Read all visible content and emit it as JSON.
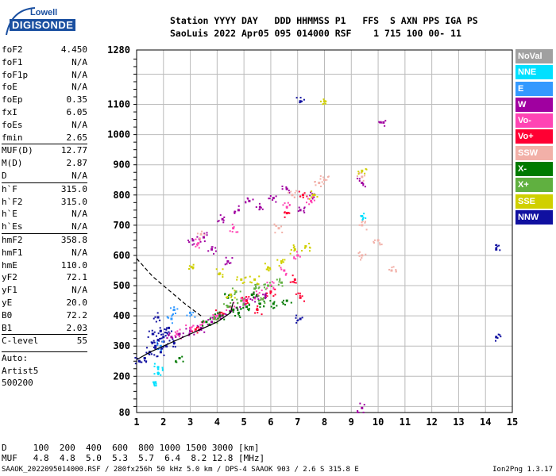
{
  "logo": {
    "top": "Lowell",
    "bottom": "DIGISONDE"
  },
  "header": {
    "line1": "Station YYYY DAY   DDD HHMMSS P1   FFS  S AXN PPS IGA PS",
    "line2": "SaoLuis 2022 Apr05 095 014000 RSF    1 715 100 00- 11"
  },
  "params": [
    {
      "label": "foF2",
      "value": "4.450"
    },
    {
      "label": "foF1",
      "value": "N/A"
    },
    {
      "label": "foF1p",
      "value": "N/A"
    },
    {
      "label": "foE",
      "value": "N/A"
    },
    {
      "label": "foEp",
      "value": "0.35"
    },
    {
      "label": "fxI",
      "value": "6.05"
    },
    {
      "label": "foEs",
      "value": "N/A"
    },
    {
      "label": "fmin",
      "value": "2.65"
    },
    {
      "label": "MUF(D)",
      "value": "12.77",
      "sep": true
    },
    {
      "label": "M(D)",
      "value": "2.87"
    },
    {
      "label": "D",
      "value": "N/A"
    },
    {
      "label": "h`F",
      "value": "315.0",
      "sep": true
    },
    {
      "label": "h`F2",
      "value": "315.0"
    },
    {
      "label": "h`E",
      "value": "N/A"
    },
    {
      "label": "h`Es",
      "value": "N/A"
    },
    {
      "label": "hmF2",
      "value": "358.8",
      "sep": true
    },
    {
      "label": "hmF1",
      "value": "N/A"
    },
    {
      "label": "hmE",
      "value": "110.0"
    },
    {
      "label": "yF2",
      "value": "72.1"
    },
    {
      "label": "yF1",
      "value": "N/A"
    },
    {
      "label": "yE",
      "value": "20.0"
    },
    {
      "label": "B0",
      "value": "72.2"
    },
    {
      "label": "B1",
      "value": "2.03"
    },
    {
      "label": "C-level",
      "value": "55",
      "sep": true
    }
  ],
  "autoscale": {
    "line1": "Auto:",
    "line2": "Artist5",
    "line3": "500200"
  },
  "legend": [
    {
      "label": "NoVal",
      "color": "#a0a0a0"
    },
    {
      "label": "NNE",
      "color": "#00e0ff"
    },
    {
      "label": "E",
      "color": "#3399ff"
    },
    {
      "label": "W",
      "color": "#a000a0"
    },
    {
      "label": "Vo-",
      "color": "#ff44b4"
    },
    {
      "label": "Vo+",
      "color": "#ff0033"
    },
    {
      "label": "SSW",
      "color": "#f2b0a8"
    },
    {
      "label": "X-",
      "color": "#007a00"
    },
    {
      "label": "X+",
      "color": "#60b040"
    },
    {
      "label": "SSE",
      "color": "#d0d000"
    },
    {
      "label": "NNW",
      "color": "#1010a0"
    }
  ],
  "table": {
    "row1": "D     100  200  400  600  800 1000 1500 3000 [km]",
    "row2": "MUF   4.8  4.8  5.0  5.3  5.7  6.4  8.2 12.8 [MHz]"
  },
  "footer": {
    "left": "SAAOK_2022095014000.RSF / 280fx256h 50 kHz 5.0 km / DPS-4 SAAOK 903 / 2.6 S 315.8 E",
    "right": "Ion2Png 1.3.17"
  },
  "chart_data": {
    "type": "scatter",
    "xlabel": "",
    "ylabel": "",
    "xlim": [
      1,
      15
    ],
    "ylim": [
      80,
      1280
    ],
    "x_ticks": [
      1,
      2,
      3,
      4,
      5,
      6,
      7,
      8,
      9,
      10,
      11,
      12,
      13,
      14,
      15
    ],
    "y_ticks": [
      80,
      200,
      300,
      400,
      500,
      600,
      700,
      800,
      900,
      1000,
      1100,
      1280
    ],
    "grid": true,
    "legend_position": "right",
    "series": [
      {
        "name": "NNW",
        "color": "#1010a0",
        "points": [
          [
            1.1,
            250
          ],
          [
            1.3,
            260
          ],
          [
            1.5,
            280
          ],
          [
            1.7,
            300
          ],
          [
            1.8,
            320
          ],
          [
            1.9,
            350
          ],
          [
            2.0,
            330
          ],
          [
            2.1,
            300
          ],
          [
            1.6,
            340
          ],
          [
            1.9,
            280
          ],
          [
            2.2,
            360
          ],
          [
            2.4,
            310
          ],
          [
            7.1,
            390
          ],
          [
            7.1,
            1110
          ],
          [
            14.4,
            620
          ],
          [
            14.4,
            330
          ],
          [
            1.8,
            395
          ]
        ]
      },
      {
        "name": "W",
        "color": "#a000a0",
        "points": [
          [
            2.3,
            330
          ],
          [
            2.6,
            340
          ],
          [
            3.0,
            350
          ],
          [
            3.4,
            360
          ],
          [
            3.8,
            380
          ],
          [
            4.2,
            400
          ],
          [
            4.6,
            420
          ],
          [
            5.0,
            440
          ],
          [
            5.4,
            460
          ],
          [
            5.8,
            470
          ],
          [
            3.1,
            650
          ],
          [
            3.5,
            660
          ],
          [
            4.2,
            720
          ],
          [
            4.8,
            750
          ],
          [
            5.2,
            780
          ],
          [
            5.6,
            760
          ],
          [
            6.1,
            790
          ],
          [
            6.6,
            820
          ],
          [
            7.1,
            750
          ],
          [
            7.6,
            800
          ],
          [
            9.4,
            840
          ],
          [
            9.4,
            95
          ],
          [
            10.2,
            1040
          ],
          [
            3.8,
            620
          ],
          [
            4.4,
            580
          ]
        ]
      },
      {
        "name": "Vo-",
        "color": "#ff44b4",
        "points": [
          [
            2.5,
            340
          ],
          [
            3.0,
            360
          ],
          [
            3.5,
            380
          ],
          [
            4.0,
            400
          ],
          [
            4.5,
            430
          ],
          [
            5.0,
            450
          ],
          [
            5.5,
            470
          ],
          [
            6.0,
            500
          ],
          [
            6.5,
            550
          ],
          [
            7.0,
            600
          ],
          [
            3.3,
            640
          ],
          [
            4.6,
            690
          ],
          [
            6.6,
            760
          ],
          [
            7.5,
            780
          ]
        ]
      },
      {
        "name": "Vo+",
        "color": "#ff0033",
        "points": [
          [
            3.2,
            355
          ],
          [
            4.1,
            410
          ],
          [
            5.1,
            450
          ],
          [
            6.0,
            480
          ],
          [
            6.6,
            740
          ],
          [
            6.9,
            520
          ],
          [
            7.1,
            460
          ],
          [
            7.2,
            800
          ],
          [
            5.5,
            420
          ]
        ]
      },
      {
        "name": "SSW",
        "color": "#f2b0a8",
        "points": [
          [
            7.8,
            840
          ],
          [
            8.0,
            850
          ],
          [
            9.4,
            600
          ],
          [
            9.4,
            700
          ],
          [
            9.4,
            860
          ],
          [
            10.0,
            650
          ],
          [
            10.5,
            550
          ],
          [
            6.3,
            690
          ],
          [
            6.8,
            800
          ],
          [
            3.4,
            670
          ]
        ]
      },
      {
        "name": "X-",
        "color": "#007a00",
        "points": [
          [
            3.6,
            380
          ],
          [
            4.1,
            400
          ],
          [
            4.6,
            420
          ],
          [
            5.1,
            430
          ],
          [
            5.6,
            440
          ],
          [
            6.1,
            440
          ],
          [
            6.6,
            450
          ],
          [
            4.4,
            460
          ],
          [
            5.3,
            470
          ],
          [
            2.6,
            260
          ],
          [
            4.8,
            410
          ]
        ]
      },
      {
        "name": "X+",
        "color": "#60b040",
        "points": [
          [
            3.9,
            390
          ],
          [
            4.4,
            430
          ],
          [
            4.9,
            450
          ],
          [
            5.4,
            490
          ],
          [
            5.9,
            500
          ],
          [
            6.4,
            510
          ],
          [
            4.7,
            480
          ],
          [
            5.7,
            455
          ]
        ]
      },
      {
        "name": "SSE",
        "color": "#d0d000",
        "points": [
          [
            4.5,
            470
          ],
          [
            4.9,
            520
          ],
          [
            5.4,
            520
          ],
          [
            5.9,
            560
          ],
          [
            6.4,
            580
          ],
          [
            6.9,
            620
          ],
          [
            7.3,
            630
          ],
          [
            7.6,
            800
          ],
          [
            8.0,
            1110
          ],
          [
            4.1,
            540
          ],
          [
            3.1,
            560
          ],
          [
            9.4,
            880
          ]
        ]
      },
      {
        "name": "NNE",
        "color": "#00e0ff",
        "points": [
          [
            1.7,
            180
          ],
          [
            1.8,
            210
          ],
          [
            1.8,
            230
          ],
          [
            9.4,
            730
          ]
        ]
      },
      {
        "name": "E",
        "color": "#3399ff",
        "points": [
          [
            1.9,
            300
          ],
          [
            2.3,
            390
          ],
          [
            2.4,
            420
          ],
          [
            3.0,
            410
          ]
        ]
      }
    ],
    "trace_dashed": [
      [
        1.0,
        590
      ],
      [
        1.3,
        560
      ],
      [
        1.6,
        530
      ],
      [
        2.0,
        500
      ],
      [
        2.4,
        470
      ],
      [
        2.8,
        440
      ],
      [
        3.1,
        420
      ],
      [
        3.4,
        400
      ]
    ],
    "trace_solid": [
      [
        1.0,
        255
      ],
      [
        1.5,
        280
      ],
      [
        2.0,
        300
      ],
      [
        2.5,
        320
      ],
      [
        3.0,
        340
      ],
      [
        3.5,
        360
      ],
      [
        4.0,
        380
      ],
      [
        4.5,
        410
      ],
      [
        4.6,
        445
      ]
    ]
  }
}
